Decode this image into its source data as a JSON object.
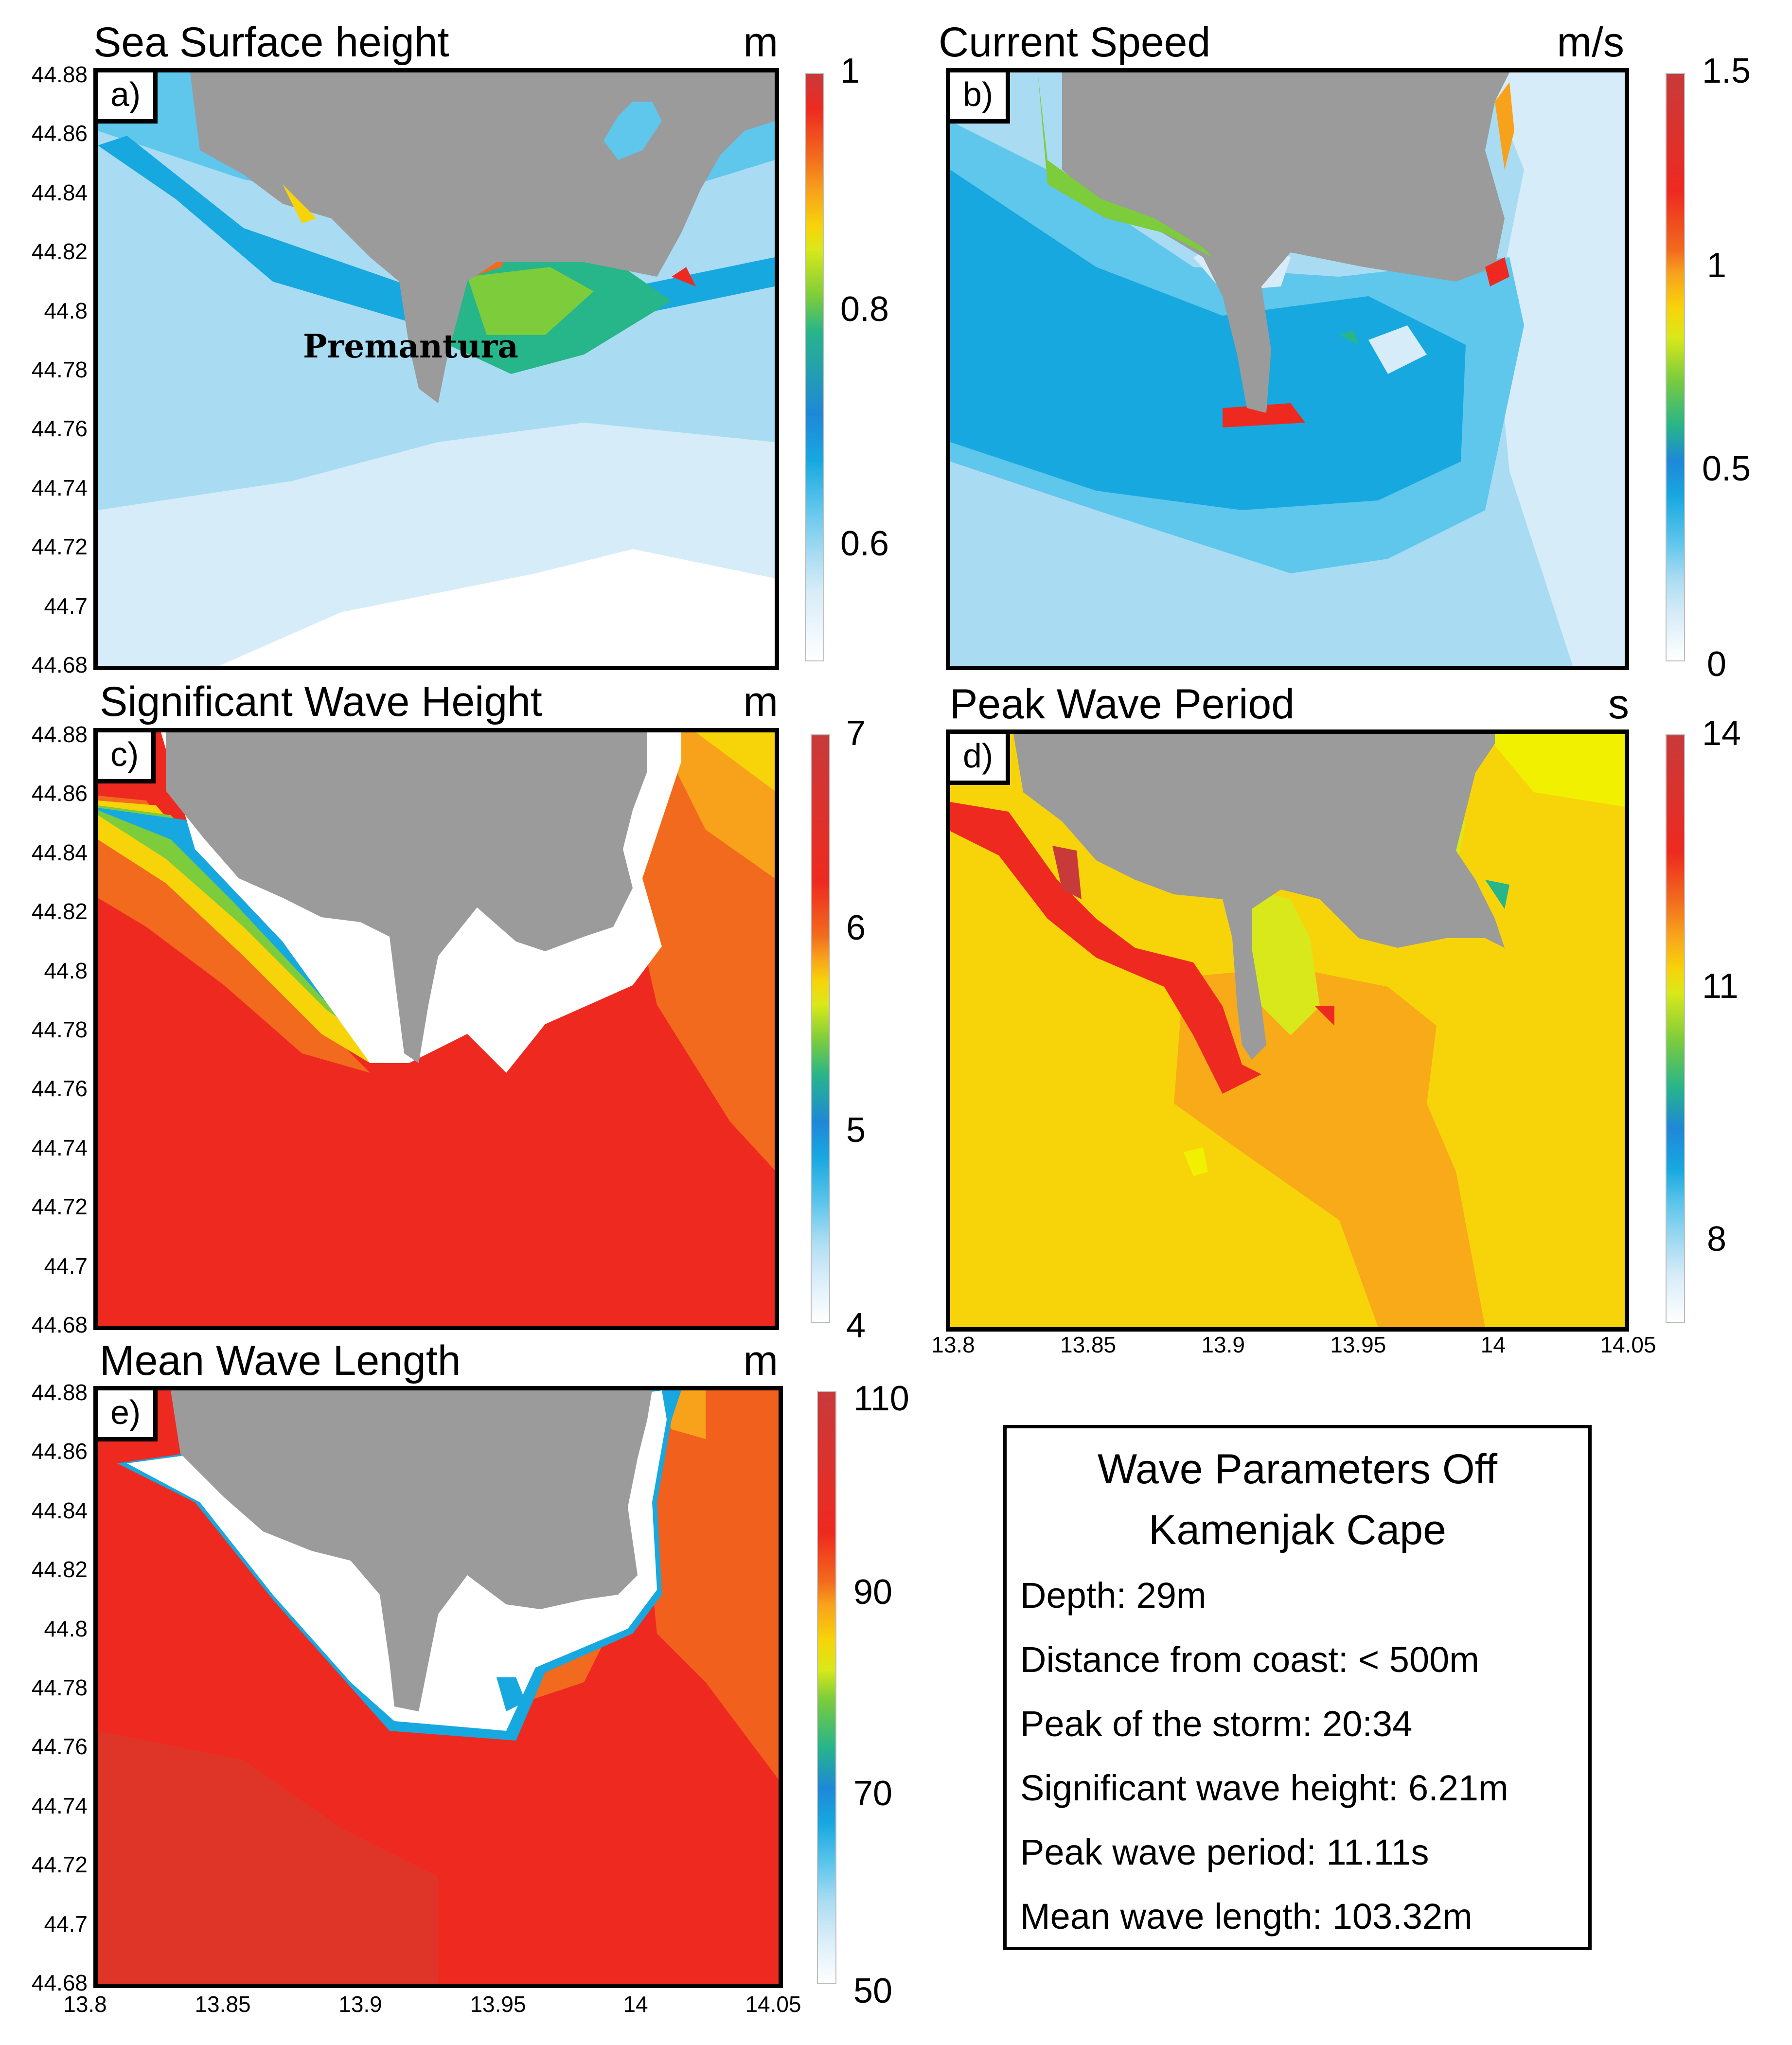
{
  "panels": [
    {
      "id": "a",
      "label": "a)",
      "title": "Sea Surface height",
      "unit": "m",
      "colorbar": {
        "ticks": [
          "1",
          "0.8",
          "0.6"
        ]
      },
      "annotation": "Premantura"
    },
    {
      "id": "b",
      "label": "b)",
      "title": "Current Speed",
      "unit": "m/s",
      "colorbar": {
        "ticks": [
          "1.5",
          "1",
          "0.5",
          "0"
        ]
      }
    },
    {
      "id": "c",
      "label": "c)",
      "title": "Significant Wave Height",
      "unit": "m",
      "colorbar": {
        "ticks": [
          "7",
          "6",
          "5",
          "4"
        ]
      }
    },
    {
      "id": "d",
      "label": "d)",
      "title": "Peak Wave Period",
      "unit": "s",
      "colorbar": {
        "ticks": [
          "14",
          "11",
          "8"
        ]
      }
    },
    {
      "id": "e",
      "label": "e)",
      "title": "Mean Wave Length",
      "unit": "m",
      "colorbar": {
        "ticks": [
          "110",
          "90",
          "70",
          "50"
        ]
      }
    }
  ],
  "axes": {
    "lat_ticks": [
      "44.88",
      "44.86",
      "44.84",
      "44.82",
      "44.8",
      "44.78",
      "44.76",
      "44.74",
      "44.72",
      "44.7",
      "44.68"
    ],
    "lon_ticks": [
      "13.8",
      "13.85",
      "13.9",
      "13.95",
      "14",
      "14.05"
    ]
  },
  "info_box": {
    "title_line1": "Wave Parameters Off",
    "title_line2": "Kamenjak Cape",
    "depth": "Depth:  29m",
    "distance": "Distance from coast: < 500m",
    "peak_storm": "Peak of the storm: 20:34",
    "sig_wave_height": "Significant wave height: 6.21m",
    "peak_period": "Peak wave period: 11.11s",
    "mean_wave_length": "Mean wave length: 103.32m"
  },
  "colors": {
    "land": "#9b9b9b",
    "scale": [
      "#ffffff",
      "#d6ecf8",
      "#a9dcf2",
      "#5fc6ec",
      "#18a8e0",
      "#1e88d8",
      "#27b58a",
      "#7ccc3c",
      "#d9e81a",
      "#f7d40a",
      "#f8a21c",
      "#f26a1d",
      "#ee2a20",
      "#c83a3a"
    ]
  }
}
